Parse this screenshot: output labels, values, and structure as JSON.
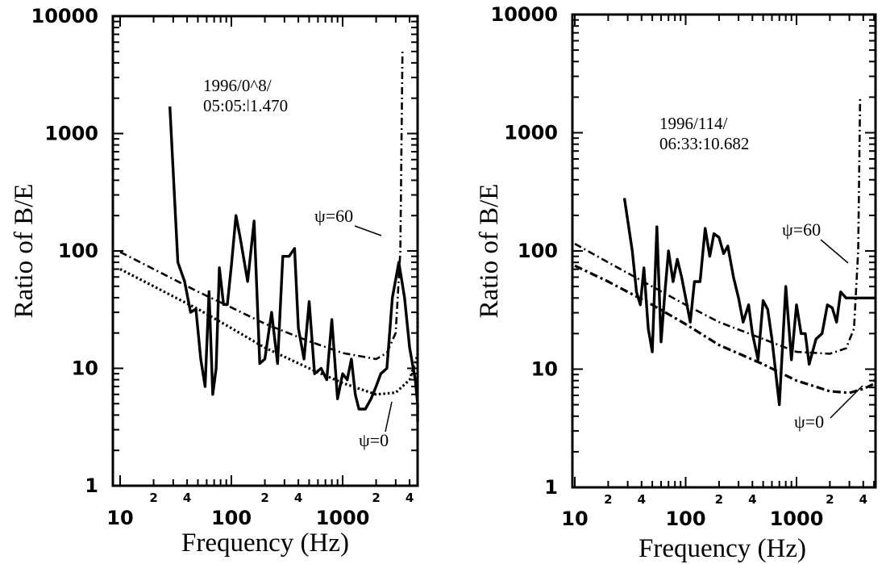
{
  "chart_data": [
    {
      "type": "line",
      "xscale": "log",
      "yscale": "log",
      "xlim": [
        10,
        6000
      ],
      "ylim": [
        1,
        10000
      ],
      "xlabel": "Frequency (Hz)",
      "ylabel": "Ratio of B/E",
      "x_tick_labels": [
        "10",
        "100",
        "1000"
      ],
      "x_minor_labels": [
        "2",
        "4",
        "2",
        "4",
        "2",
        "4"
      ],
      "y_tick_labels": [
        "1",
        "10",
        "100",
        "1000",
        "10000"
      ],
      "annotation_line1": "1996/0^8/",
      "annotation_line2": "05:05:ǀ1.470",
      "psi60_label": "ψ=60",
      "psi0_label": "ψ=0",
      "series": [
        {
          "style": "solid",
          "x": [
            28,
            33,
            38,
            43,
            48,
            53,
            58,
            63,
            68,
            73,
            78,
            85,
            92,
            100,
            110,
            120,
            140,
            160,
            180,
            200,
            230,
            260,
            290,
            330,
            370,
            400,
            450,
            500,
            560,
            640,
            720,
            800,
            900,
            1000,
            1100,
            1200,
            1300,
            1400,
            1600,
            1800,
            2000,
            2200,
            2500,
            2800,
            3200,
            3600,
            4000,
            4500,
            5000,
            5500,
            6000
          ],
          "y": [
            1700,
            80,
            55,
            30,
            32,
            12,
            7,
            45,
            6,
            10,
            72,
            35,
            35,
            75,
            200,
            130,
            55,
            180,
            11,
            12,
            30,
            11,
            90,
            90,
            105,
            22,
            12,
            37,
            9,
            10,
            8,
            26,
            5.5,
            9,
            8,
            12,
            6,
            4.5,
            4.5,
            5.5,
            7,
            9,
            10,
            40,
            80,
            40,
            15,
            8,
            5,
            4,
            3.5
          ]
        },
        {
          "style": "dashdot",
          "x": [
            10,
            20,
            50,
            100,
            200,
            500,
            1000,
            2000,
            2500,
            3000,
            3300,
            3450
          ],
          "y": [
            98,
            70,
            45,
            33,
            24,
            17,
            13.5,
            12,
            13.5,
            20,
            100,
            5000
          ]
        },
        {
          "style": "dotted",
          "x": [
            10,
            20,
            50,
            100,
            200,
            500,
            1000,
            2000,
            3000,
            4000,
            5000,
            6000
          ],
          "y": [
            70,
            50,
            32,
            22,
            15,
            10,
            7.5,
            6,
            6.2,
            8,
            13,
            30
          ]
        }
      ]
    },
    {
      "type": "line",
      "xscale": "log",
      "yscale": "log",
      "xlim": [
        10,
        6000
      ],
      "ylim": [
        1,
        10000
      ],
      "xlabel": "Frequency (Hz)",
      "ylabel": "Ratio of B/E",
      "x_tick_labels": [
        "10",
        "100",
        "1000"
      ],
      "x_minor_labels": [
        "2",
        "4",
        "2",
        "4",
        "2",
        "4"
      ],
      "y_tick_labels": [
        "1",
        "10",
        "100",
        "1000",
        "10000"
      ],
      "annotation_line1": "1996/114/",
      "annotation_line2": "06:33:10.682",
      "psi60_label": "ψ=60",
      "psi0_label": "ψ=0",
      "series": [
        {
          "style": "solid",
          "x": [
            28,
            33,
            36,
            39,
            42,
            46,
            50,
            55,
            60,
            65,
            70,
            77,
            84,
            92,
            100,
            110,
            120,
            135,
            150,
            165,
            180,
            200,
            220,
            240,
            270,
            300,
            330,
            370,
            400,
            450,
            500,
            550,
            600,
            700,
            800,
            900,
            1000,
            1100,
            1200,
            1300,
            1500,
            1700,
            1900,
            2100,
            2300,
            2500,
            2800,
            3000,
            3400,
            3800,
            4200,
            4600,
            5000,
            5500,
            6000
          ],
          "y": [
            280,
            100,
            45,
            35,
            72,
            22,
            14,
            160,
            17,
            45,
            100,
            55,
            85,
            60,
            40,
            25,
            55,
            55,
            155,
            90,
            140,
            130,
            95,
            110,
            60,
            40,
            25,
            35,
            20,
            12,
            38,
            32,
            18,
            5,
            50,
            12,
            35,
            20,
            20,
            11,
            18,
            20,
            35,
            33,
            25,
            45,
            40,
            40,
            40,
            40,
            40,
            40,
            40,
            40,
            40
          ]
        },
        {
          "style": "dashdot",
          "x": [
            10,
            20,
            50,
            100,
            200,
            500,
            1000,
            2000,
            2800,
            3300,
            3600,
            3750
          ],
          "y": [
            115,
            80,
            50,
            35,
            25,
            18,
            14,
            13.5,
            15,
            22,
            100,
            2000
          ]
        },
        {
          "style": "dashdot-heavy",
          "x": [
            10,
            20,
            50,
            100,
            200,
            500,
            1000,
            2000,
            3000,
            4000,
            5000,
            6000
          ],
          "y": [
            75,
            55,
            35,
            24,
            16,
            11,
            8,
            6.5,
            6.3,
            6.8,
            7.5,
            8.5
          ]
        }
      ]
    }
  ]
}
